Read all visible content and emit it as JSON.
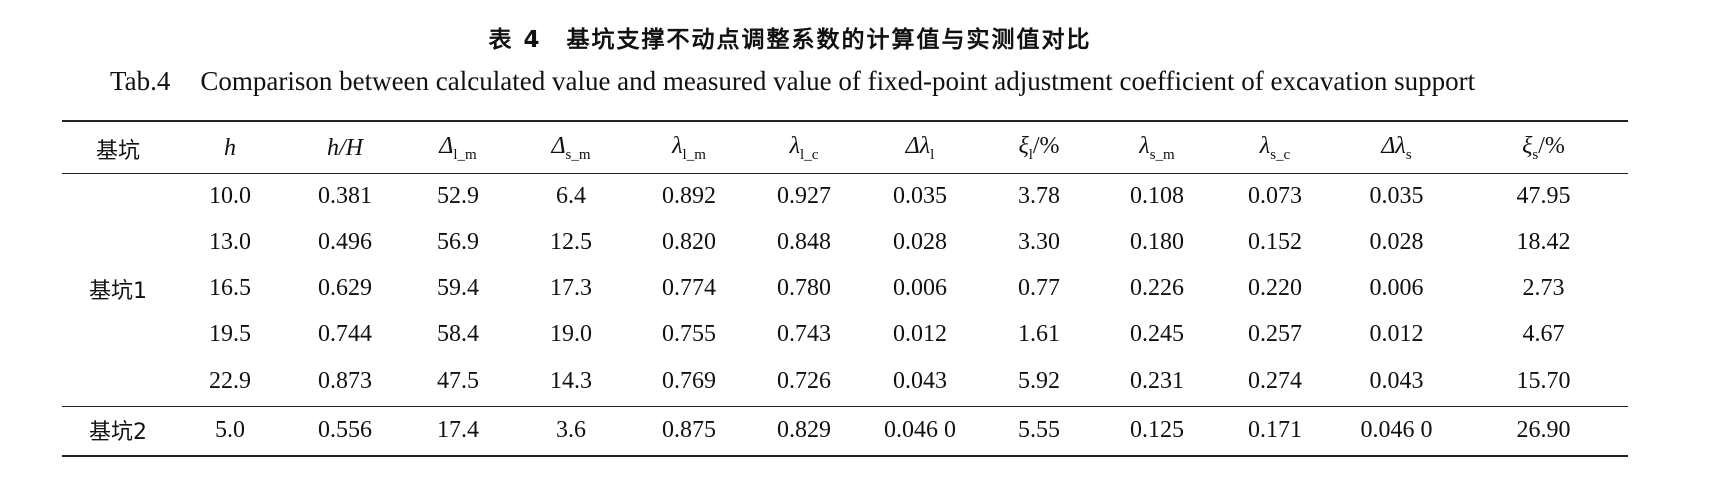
{
  "caption": {
    "cn": "表 4　基坑支撑不动点调整系数的计算值与实测值对比",
    "en_label": "Tab.4",
    "en_text": "Comparison between calculated value and measured value of fixed-point adjustment coefficient of excavation support"
  },
  "table": {
    "headers": [
      {
        "main": "基坑",
        "sub": ""
      },
      {
        "main": "h",
        "sub": ""
      },
      {
        "main": "h/H",
        "sub": ""
      },
      {
        "main": "Δ",
        "sub": "l_m"
      },
      {
        "main": "Δ",
        "sub": "s_m"
      },
      {
        "main": "λ",
        "sub": "l_m"
      },
      {
        "main": "λ",
        "sub": "l_c"
      },
      {
        "main": "Δλ",
        "sub": "l"
      },
      {
        "main": "ξ",
        "sub": "l",
        "suffix": "/%"
      },
      {
        "main": "λ",
        "sub": "s_m"
      },
      {
        "main": "λ",
        "sub": "s_c"
      },
      {
        "main": "Δλ",
        "sub": "s"
      },
      {
        "main": "ξ",
        "sub": "s",
        "suffix": "/%"
      }
    ],
    "groups": [
      {
        "name": "基坑1",
        "rows": [
          [
            "10.0",
            "0.381",
            "52.9",
            "6.4",
            "0.892",
            "0.927",
            "0.035",
            "3.78",
            "0.108",
            "0.073",
            "0.035",
            "47.95"
          ],
          [
            "13.0",
            "0.496",
            "56.9",
            "12.5",
            "0.820",
            "0.848",
            "0.028",
            "3.30",
            "0.180",
            "0.152",
            "0.028",
            "18.42"
          ],
          [
            "16.5",
            "0.629",
            "59.4",
            "17.3",
            "0.774",
            "0.780",
            "0.006",
            "0.77",
            "0.226",
            "0.220",
            "0.006",
            "2.73"
          ],
          [
            "19.5",
            "0.744",
            "58.4",
            "19.0",
            "0.755",
            "0.743",
            "0.012",
            "1.61",
            "0.245",
            "0.257",
            "0.012",
            "4.67"
          ],
          [
            "22.9",
            "0.873",
            "47.5",
            "14.3",
            "0.769",
            "0.726",
            "0.043",
            "5.92",
            "0.231",
            "0.274",
            "0.043",
            "15.70"
          ]
        ]
      },
      {
        "name": "基坑2",
        "rows": [
          [
            "5.0",
            "0.556",
            "17.4",
            "3.6",
            "0.875",
            "0.829",
            "0.046 0",
            "5.55",
            "0.125",
            "0.171",
            "0.046 0",
            "26.90"
          ]
        ]
      }
    ]
  }
}
